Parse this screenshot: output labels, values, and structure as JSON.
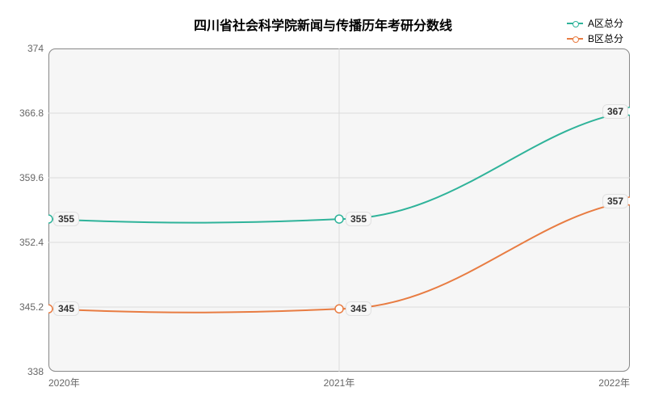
{
  "chart": {
    "type": "line",
    "title": "四川省社会科学院新闻与传播历年考研分数线",
    "title_fontsize": 16,
    "title_weight": "bold",
    "background_color": "#ffffff",
    "plot_background": "linear-gradient(#f9f9f9, #f2f2f2)",
    "border_radius": 12,
    "grid_color": "#dcdcdc",
    "axis_color": "#888888",
    "label_fontsize": 12,
    "data_label_fontsize": 12,
    "x": {
      "categories": [
        "2020年",
        "2021年",
        "2022年"
      ],
      "positions": [
        0,
        0.5,
        1
      ]
    },
    "y": {
      "min": 338,
      "max": 374,
      "ticks": [
        338,
        345.2,
        352.4,
        359.6,
        366.8,
        374
      ],
      "tick_labels": [
        "338",
        "345.2",
        "352.4",
        "359.6",
        "366.8",
        "374"
      ]
    },
    "series": [
      {
        "name": "A区总分",
        "color": "#2fb39a",
        "line_width": 2,
        "marker": "circle",
        "marker_size": 5,
        "smooth": true,
        "values": [
          355,
          355,
          367
        ],
        "labels": [
          "355",
          "355",
          "367"
        ]
      },
      {
        "name": "B区总分",
        "color": "#e87c42",
        "line_width": 2,
        "marker": "circle",
        "marker_size": 5,
        "smooth": true,
        "values": [
          345,
          345,
          357
        ],
        "labels": [
          "345",
          "345",
          "357"
        ]
      }
    ],
    "legend": {
      "position": "top-right",
      "fontsize": 12
    }
  }
}
